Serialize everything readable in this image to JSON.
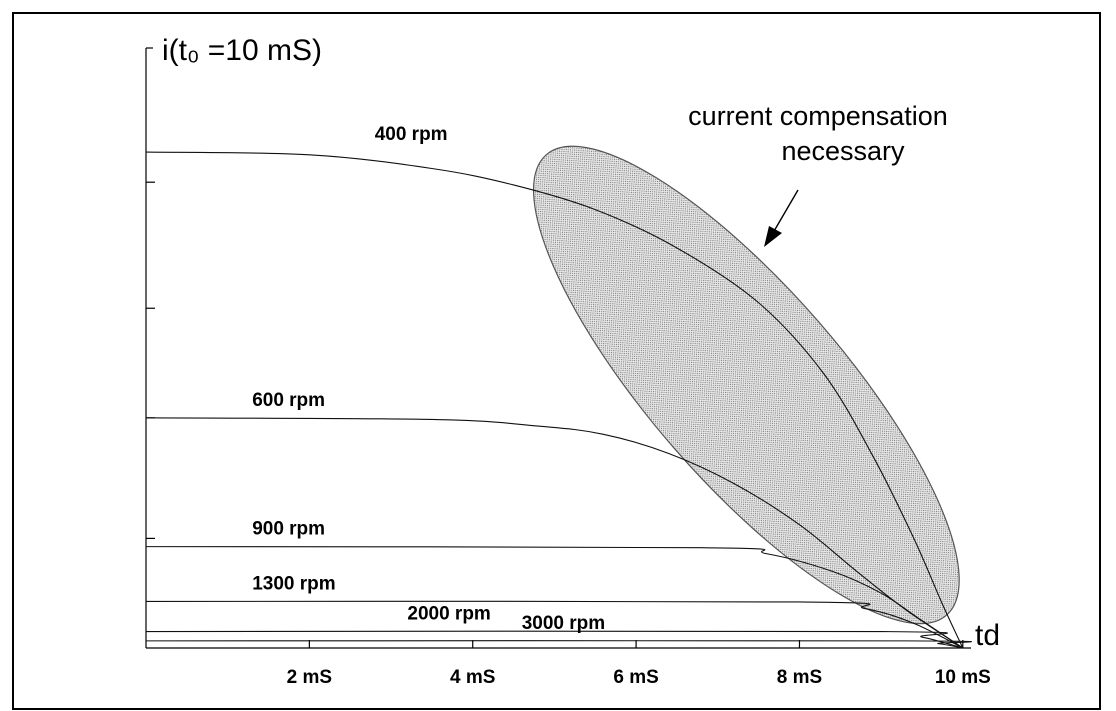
{
  "chart_data": {
    "type": "line",
    "ylabel": "i(t₀ =10 mS)",
    "xlabel": "td",
    "xlim": [
      0,
      10.1
    ],
    "ylim": [
      0,
      1.0
    ],
    "x_ticks": [
      {
        "value": 2,
        "label": "2 mS"
      },
      {
        "value": 4,
        "label": "4 mS"
      },
      {
        "value": 6,
        "label": "6 mS"
      },
      {
        "value": 8,
        "label": "8 mS"
      },
      {
        "value": 10,
        "label": "10 mS"
      }
    ],
    "y_ticks": [
      0.2,
      0.42,
      0.62,
      0.85
    ],
    "series": [
      {
        "name": "400 rpm",
        "label_x": 2.8,
        "points": [
          [
            0,
            0.905
          ],
          [
            2,
            0.9
          ],
          [
            3.5,
            0.875
          ],
          [
            4.5,
            0.845
          ],
          [
            5.5,
            0.8
          ],
          [
            6.5,
            0.73
          ],
          [
            7.5,
            0.63
          ],
          [
            8.3,
            0.5
          ],
          [
            8.9,
            0.35
          ],
          [
            9.4,
            0.2
          ],
          [
            9.75,
            0.08
          ],
          [
            10,
            0
          ]
        ]
      },
      {
        "name": "600 rpm",
        "label_x": 1.3,
        "points": [
          [
            0,
            0.42
          ],
          [
            3.5,
            0.417
          ],
          [
            4.8,
            0.405
          ],
          [
            5.6,
            0.39
          ],
          [
            6.4,
            0.355
          ],
          [
            7.2,
            0.3
          ],
          [
            8,
            0.225
          ],
          [
            8.7,
            0.14
          ],
          [
            9.3,
            0.07
          ],
          [
            10,
            0
          ]
        ]
      },
      {
        "name": "900 rpm",
        "label_x": 1.3,
        "points": [
          [
            0,
            0.185
          ],
          [
            6.8,
            0.183
          ],
          [
            7.6,
            0.172
          ],
          [
            8.4,
            0.14
          ],
          [
            9.0,
            0.1
          ],
          [
            9.5,
            0.05
          ],
          [
            10,
            0
          ]
        ]
      },
      {
        "name": "1300 rpm",
        "label_x": 1.3,
        "points": [
          [
            0,
            0.085
          ],
          [
            8.0,
            0.084
          ],
          [
            8.8,
            0.072
          ],
          [
            9.4,
            0.045
          ],
          [
            10,
            0
          ]
        ]
      },
      {
        "name": "2000 rpm",
        "label_x": 3.2,
        "points": [
          [
            0,
            0.03
          ],
          [
            9.0,
            0.03
          ],
          [
            9.5,
            0.02
          ],
          [
            10,
            0
          ]
        ]
      },
      {
        "name": "3000 rpm",
        "label_x": 4.6,
        "points": [
          [
            0,
            0.013
          ],
          [
            9.3,
            0.013
          ],
          [
            9.7,
            0.008
          ],
          [
            10,
            0
          ]
        ]
      }
    ],
    "annotation": {
      "lines": [
        "current compensation",
        "necessary"
      ],
      "region": {
        "cx": 7.35,
        "cy": 0.48,
        "rx_data": 5.4,
        "ry_data": 0.135,
        "angle_deg": 49
      }
    },
    "grid": false,
    "legend": "none"
  }
}
